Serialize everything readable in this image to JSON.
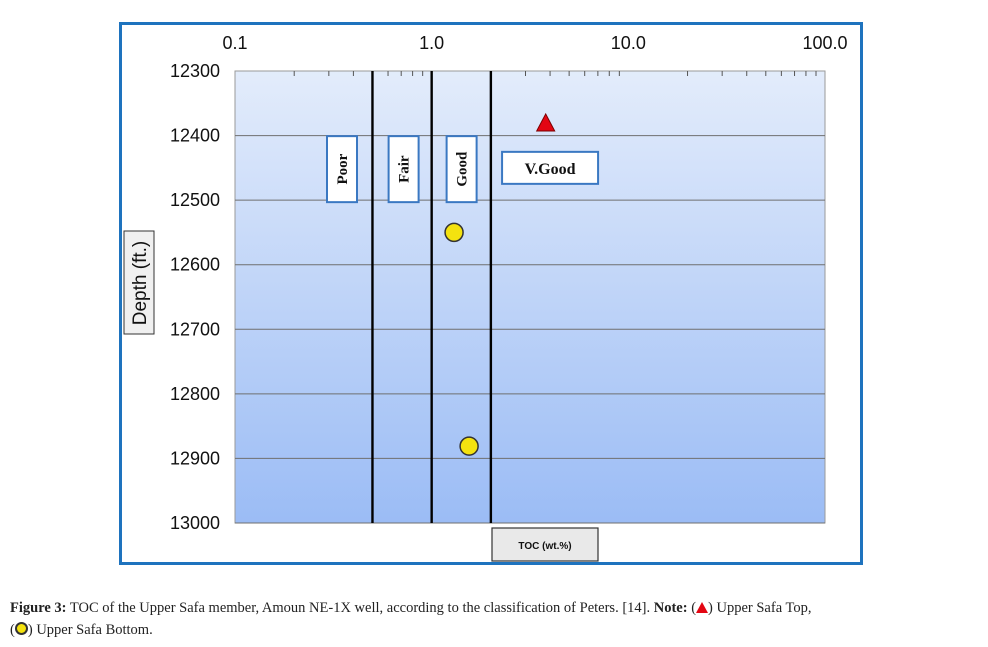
{
  "chart_data": {
    "type": "scatter",
    "x_scale": "log",
    "x_axis_position": "top",
    "xlim": [
      0.1,
      100
    ],
    "x_tick_labels": [
      "0.1",
      "1.0",
      "10.0",
      "100.0"
    ],
    "x_ticks": [
      0.1,
      1,
      10,
      100
    ],
    "ylim": [
      12300,
      13000
    ],
    "y_inverted": true,
    "y_ticks": [
      12300,
      12400,
      12500,
      12600,
      12700,
      12800,
      12900,
      13000
    ],
    "y_tick_labels": [
      "12300",
      "12400",
      "12500",
      "12600",
      "12700",
      "12800",
      "12900",
      "13000"
    ],
    "ylabel": "Depth (ft.)",
    "xlabel": "TOC (wt.%)",
    "grid": "horizontal",
    "boundaries": [
      0.5,
      1.0,
      2.0
    ],
    "classes": [
      {
        "label": "Poor",
        "x": 0.35,
        "y": 12452
      },
      {
        "label": "Fair",
        "x": 0.72,
        "y": 12452
      },
      {
        "label": "Good",
        "x": 1.42,
        "y": 12452
      },
      {
        "label": "V.Good",
        "x": 4.0,
        "y": 12450
      }
    ],
    "series": [
      {
        "marker": "triangle",
        "color": "#e30613",
        "points": [
          {
            "x": 3.8,
            "y": 12382
          }
        ]
      },
      {
        "marker": "circle",
        "color": "#f4e20f",
        "points": [
          {
            "x": 1.3,
            "y": 12550
          },
          {
            "x": 1.55,
            "y": 12881
          }
        ]
      }
    ]
  },
  "caption": {
    "label": "Figure 3:",
    "text": "TOC of the Upper Safa member, Amoun NE-1X well, according to the classification of Peters. [14].",
    "note_label": "Note:",
    "open_paren": "(",
    "close_paren": ")",
    "legend_top": "Upper Safa Top,",
    "legend_bottom": "Upper Safa Bottom."
  },
  "colors": {
    "frame": "#1e73be",
    "plot_top": "#e3ecfb",
    "plot_bottom": "#9bbcf5",
    "class_box_border": "#3a78c2",
    "triangle": "#e30613",
    "circle": "#f4e20f"
  }
}
